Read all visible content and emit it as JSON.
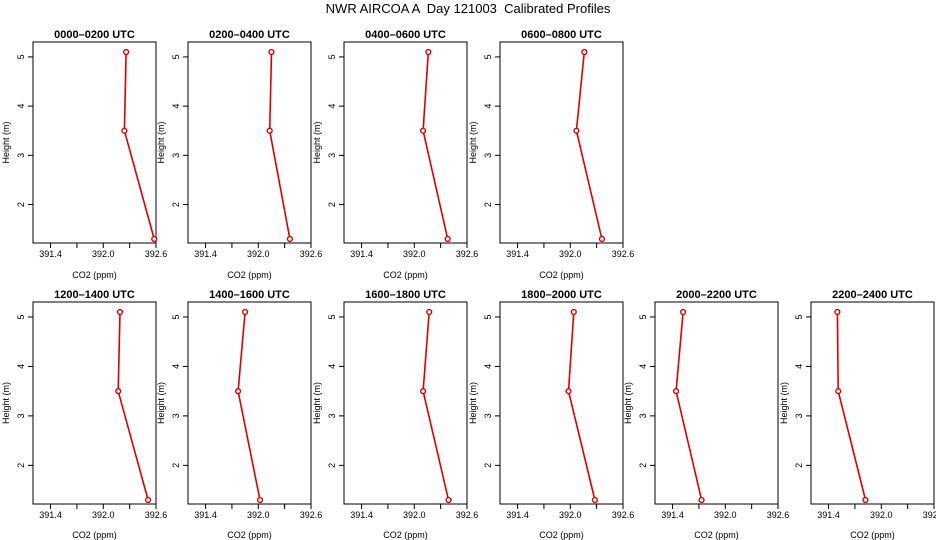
{
  "title": "NWR AIRCOA A  Day 121003  Calibrated Profiles",
  "colors": {
    "line": "#dd0000",
    "axis": "#000000"
  },
  "chart_data": [
    {
      "type": "line",
      "title": "0000–0200 UTC",
      "xlabel": "CO2 (ppm)",
      "ylabel": "Height (m)",
      "xlim": [
        391.2,
        392.6
      ],
      "ylim": [
        1.3,
        5.1
      ],
      "xticks": [
        391.4,
        392.0,
        392.6
      ],
      "xticklabels": [
        "391.4",
        "392.0",
        "392.6"
      ],
      "xminor": [
        391.7,
        392.3
      ],
      "yticks": [
        2,
        3,
        4,
        5
      ],
      "yticklabels": [
        "2",
        "3",
        "4",
        "5"
      ],
      "x": [
        392.26,
        392.24,
        392.58
      ],
      "y": [
        5.1,
        3.5,
        1.3
      ]
    },
    {
      "type": "line",
      "title": "0200–0400 UTC",
      "xlabel": "CO2 (ppm)",
      "ylabel": "Height (m)",
      "xlim": [
        391.2,
        392.6
      ],
      "ylim": [
        1.3,
        5.1
      ],
      "xticks": [
        391.4,
        392.0,
        392.6
      ],
      "xticklabels": [
        "391.4",
        "392.0",
        "392.6"
      ],
      "xminor": [
        391.7,
        392.3
      ],
      "yticks": [
        2,
        3,
        4,
        5
      ],
      "yticklabels": [
        "2",
        "3",
        "4",
        "5"
      ],
      "x": [
        392.15,
        392.13,
        392.36
      ],
      "y": [
        5.1,
        3.5,
        1.3
      ]
    },
    {
      "type": "line",
      "title": "0400–0600 UTC",
      "xlabel": "CO2 (ppm)",
      "ylabel": "Height (m)",
      "xlim": [
        391.2,
        392.6
      ],
      "ylim": [
        1.3,
        5.1
      ],
      "xticks": [
        391.4,
        392.0,
        392.6
      ],
      "xticklabels": [
        "391.4",
        "392.0",
        "392.6"
      ],
      "xminor": [
        391.7,
        392.3
      ],
      "yticks": [
        2,
        3,
        4,
        5
      ],
      "yticklabels": [
        "2",
        "3",
        "4",
        "5"
      ],
      "x": [
        392.16,
        392.1,
        392.38
      ],
      "y": [
        5.1,
        3.5,
        1.3
      ]
    },
    {
      "type": "line",
      "title": "0600–0800 UTC",
      "xlabel": "CO2 (ppm)",
      "ylabel": "Height (m)",
      "xlim": [
        391.2,
        392.6
      ],
      "ylim": [
        1.3,
        5.1
      ],
      "xticks": [
        391.4,
        392.0,
        392.6
      ],
      "xticklabels": [
        "391.4",
        "392.0",
        "392.6"
      ],
      "xminor": [
        391.7,
        392.3
      ],
      "yticks": [
        2,
        3,
        4,
        5
      ],
      "yticklabels": [
        "2",
        "3",
        "4",
        "5"
      ],
      "x": [
        392.16,
        392.07,
        392.36
      ],
      "y": [
        5.1,
        3.5,
        1.3
      ]
    },
    {
      "type": "line",
      "title": "1200–1400 UTC",
      "xlabel": "CO2 (ppm)",
      "ylabel": "Height (m)",
      "xlim": [
        391.2,
        392.6
      ],
      "ylim": [
        1.3,
        5.1
      ],
      "xticks": [
        391.4,
        392.0,
        392.6
      ],
      "xticklabels": [
        "391.4",
        "392.0",
        "392.6"
      ],
      "xminor": [
        391.7,
        392.3
      ],
      "yticks": [
        2,
        3,
        4,
        5
      ],
      "yticklabels": [
        "2",
        "3",
        "4",
        "5"
      ],
      "x": [
        392.19,
        392.17,
        392.51
      ],
      "y": [
        5.1,
        3.5,
        1.3
      ]
    },
    {
      "type": "line",
      "title": "1400–1600 UTC",
      "xlabel": "CO2 (ppm)",
      "ylabel": "Height (m)",
      "xlim": [
        391.2,
        392.6
      ],
      "ylim": [
        1.3,
        5.1
      ],
      "xticks": [
        391.4,
        392.0,
        392.6
      ],
      "xticklabels": [
        "391.4",
        "392.0",
        "392.6"
      ],
      "xminor": [
        391.7,
        392.3
      ],
      "yticks": [
        2,
        3,
        4,
        5
      ],
      "yticklabels": [
        "2",
        "3",
        "4",
        "5"
      ],
      "x": [
        391.85,
        391.77,
        392.02
      ],
      "y": [
        5.1,
        3.5,
        1.3
      ]
    },
    {
      "type": "line",
      "title": "1600–1800 UTC",
      "xlabel": "CO2 (ppm)",
      "ylabel": "Height (m)",
      "xlim": [
        391.2,
        392.6
      ],
      "ylim": [
        1.3,
        5.1
      ],
      "xticks": [
        391.4,
        392.0,
        392.6
      ],
      "xticklabels": [
        "391.4",
        "392.0",
        "392.6"
      ],
      "xminor": [
        391.7,
        392.3
      ],
      "yticks": [
        2,
        3,
        4,
        5
      ],
      "yticklabels": [
        "2",
        "3",
        "4",
        "5"
      ],
      "x": [
        392.17,
        392.1,
        392.39
      ],
      "y": [
        5.1,
        3.5,
        1.3
      ]
    },
    {
      "type": "line",
      "title": "1800–2000 UTC",
      "xlabel": "CO2 (ppm)",
      "ylabel": "Height (m)",
      "xlim": [
        391.2,
        392.6
      ],
      "ylim": [
        1.3,
        5.1
      ],
      "xticks": [
        391.4,
        392.0,
        392.6
      ],
      "xticklabels": [
        "391.4",
        "392.0",
        "392.6"
      ],
      "xminor": [
        391.7,
        392.3
      ],
      "yticks": [
        2,
        3,
        4,
        5
      ],
      "yticklabels": [
        "2",
        "3",
        "4",
        "5"
      ],
      "x": [
        392.04,
        391.98,
        392.28
      ],
      "y": [
        5.1,
        3.5,
        1.3
      ]
    },
    {
      "type": "line",
      "title": "2000–2200 UTC",
      "xlabel": "CO2 (ppm)",
      "ylabel": "Height (m)",
      "xlim": [
        391.2,
        392.6
      ],
      "ylim": [
        1.3,
        5.1
      ],
      "xticks": [
        391.4,
        392.0,
        392.6
      ],
      "xticklabels": [
        "391.4",
        "392.0",
        "392.6"
      ],
      "xminor": [
        391.7,
        392.3
      ],
      "yticks": [
        2,
        3,
        4,
        5
      ],
      "yticklabels": [
        "2",
        "3",
        "4",
        "5"
      ],
      "x": [
        391.52,
        391.44,
        391.73
      ],
      "y": [
        5.1,
        3.5,
        1.3
      ]
    },
    {
      "type": "line",
      "title": "2200–2400 UTC",
      "xlabel": "CO2 (ppm)",
      "ylabel": "Height (m)",
      "xlim": [
        391.2,
        392.6
      ],
      "ylim": [
        1.3,
        5.1
      ],
      "xticks": [
        391.4,
        392.0,
        392.6
      ],
      "xticklabels": [
        "391.4",
        "392.0",
        "392.6"
      ],
      "xminor": [
        391.7,
        392.3
      ],
      "yticks": [
        2,
        3,
        4,
        5
      ],
      "yticklabels": [
        "2",
        "3",
        "4",
        "5"
      ],
      "x": [
        391.5,
        391.51,
        391.82
      ],
      "y": [
        5.1,
        3.5,
        1.3
      ]
    }
  ]
}
